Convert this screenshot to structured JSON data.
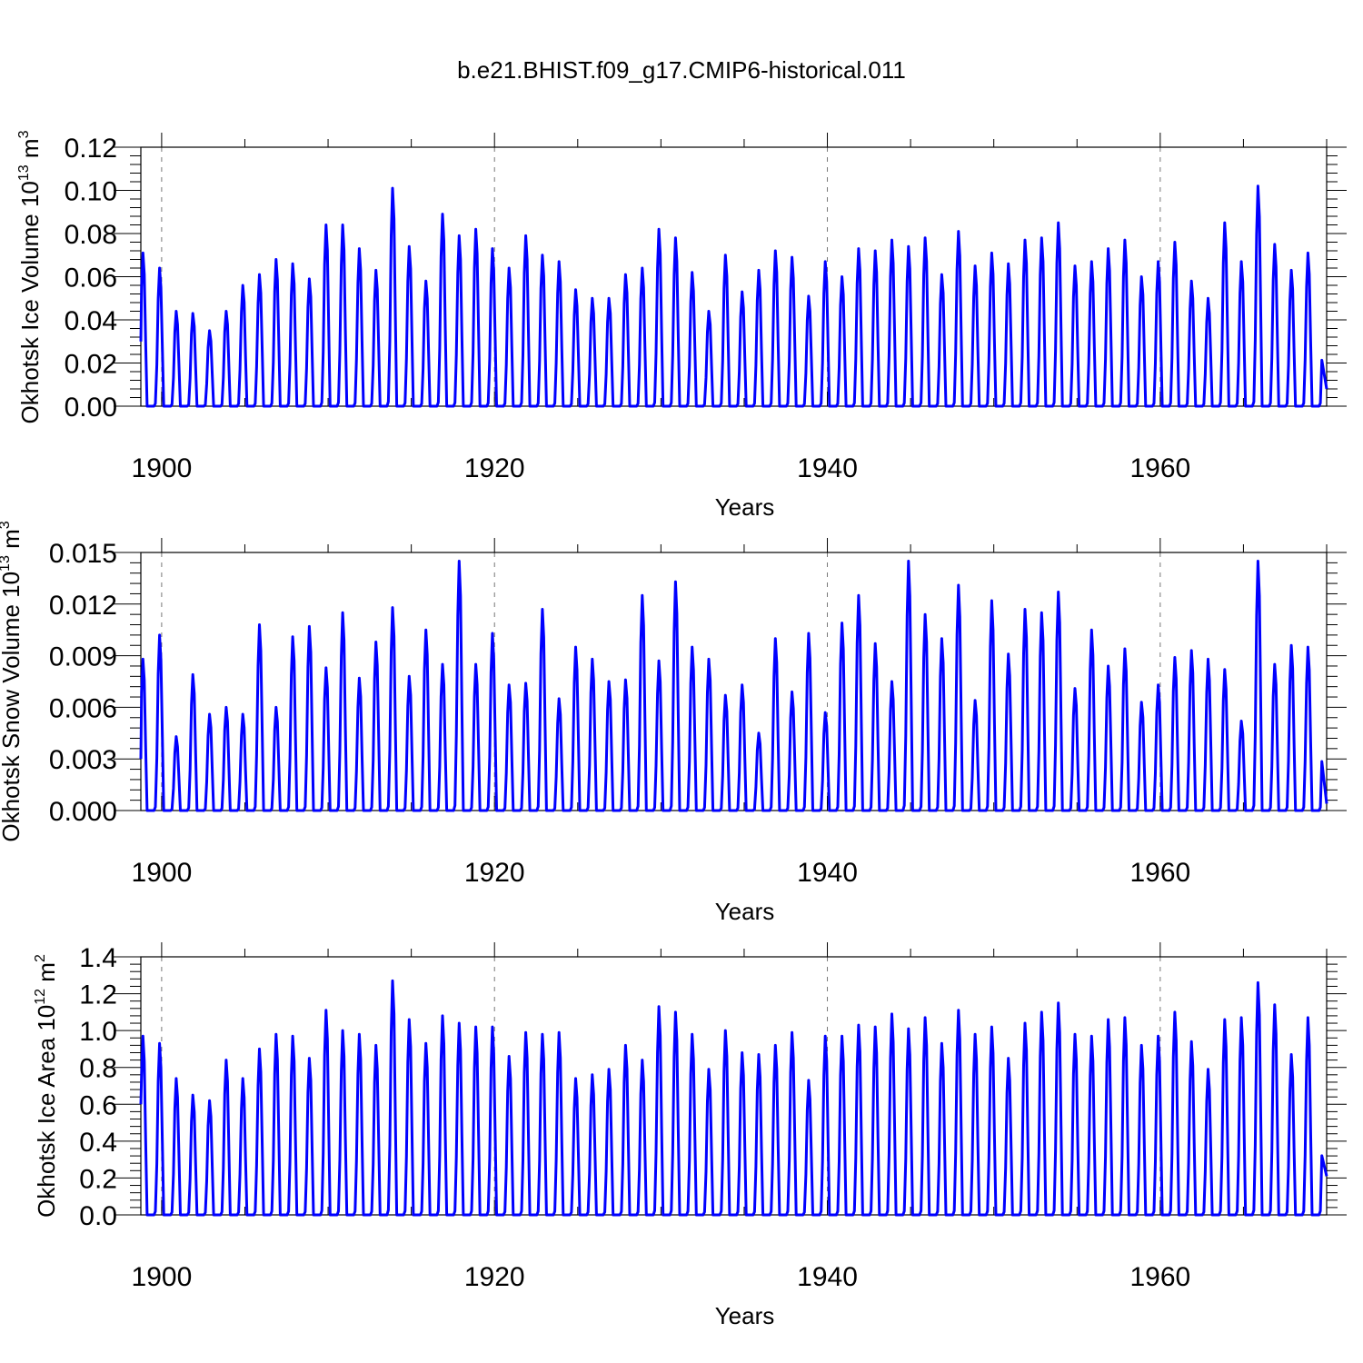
{
  "title": "b.e21.BHIST.f09_g17.CMIP6-historical.011",
  "colors": {
    "series": "#0000ff",
    "axis": "#000000",
    "grid": "#777777"
  },
  "chart_data": [
    {
      "type": "line",
      "name": "ice-volume",
      "ylabel_main": "Okhotsk Ice Volume 10",
      "ylabel_exp": "13",
      "ylabel_unit": "m",
      "ylabel_unit_exp": "3",
      "xlabel": "Years",
      "xlim": [
        1898.75,
        1970.0
      ],
      "ylim": [
        0.0,
        0.12
      ],
      "x_ticks": [
        1900,
        1920,
        1940,
        1960
      ],
      "x_tick_labels": [
        "1900",
        "1920",
        "1940",
        "1960"
      ],
      "y_ticks": [
        0.0,
        0.02,
        0.04,
        0.06,
        0.08,
        0.1,
        0.12
      ],
      "y_tick_labels": [
        "0.00",
        "0.02",
        "0.04",
        "0.06",
        "0.08",
        "0.10",
        "0.12"
      ],
      "grid_x": [
        1900,
        1920,
        1940,
        1960
      ],
      "series_name": "Okhotsk Ice Volume",
      "start_value": 0.03,
      "end_value": 0.008,
      "annual_peaks": [
        0.071,
        0.064,
        0.044,
        0.043,
        0.035,
        0.044,
        0.056,
        0.061,
        0.068,
        0.066,
        0.059,
        0.084,
        0.084,
        0.073,
        0.063,
        0.101,
        0.074,
        0.058,
        0.089,
        0.079,
        0.082,
        0.073,
        0.064,
        0.079,
        0.07,
        0.067,
        0.054,
        0.05,
        0.05,
        0.061,
        0.064,
        0.082,
        0.078,
        0.062,
        0.044,
        0.07,
        0.053,
        0.063,
        0.072,
        0.069,
        0.051,
        0.067,
        0.06,
        0.073,
        0.072,
        0.077,
        0.074,
        0.078,
        0.061,
        0.081,
        0.065,
        0.071,
        0.066,
        0.077,
        0.078,
        0.085,
        0.065,
        0.067,
        0.073,
        0.077,
        0.06,
        0.067,
        0.076,
        0.058,
        0.05,
        0.085,
        0.067,
        0.102,
        0.075,
        0.063,
        0.071
      ]
    },
    {
      "type": "line",
      "name": "snow-volume",
      "ylabel_main": "Okhotsk Snow Volume 10",
      "ylabel_exp": "13",
      "ylabel_unit": "m",
      "ylabel_unit_exp": "3",
      "xlabel": "Years",
      "xlim": [
        1898.75,
        1970.0
      ],
      "ylim": [
        0.0,
        0.015
      ],
      "x_ticks": [
        1900,
        1920,
        1940,
        1960
      ],
      "x_tick_labels": [
        "1900",
        "1920",
        "1940",
        "1960"
      ],
      "y_ticks": [
        0.0,
        0.003,
        0.006,
        0.009,
        0.012,
        0.015
      ],
      "y_tick_labels": [
        "0.000",
        "0.003",
        "0.006",
        "0.009",
        "0.012",
        "0.015"
      ],
      "grid_x": [
        1900,
        1920,
        1940,
        1960
      ],
      "series_name": "Okhotsk Snow Volume",
      "start_value": 0.003,
      "end_value": 0.0004,
      "annual_peaks": [
        0.0088,
        0.0102,
        0.0043,
        0.0079,
        0.0056,
        0.006,
        0.0056,
        0.0108,
        0.006,
        0.0101,
        0.0107,
        0.0083,
        0.0115,
        0.0077,
        0.0098,
        0.0118,
        0.0078,
        0.0105,
        0.0085,
        0.0145,
        0.0085,
        0.0103,
        0.0073,
        0.0074,
        0.0117,
        0.0065,
        0.0095,
        0.0088,
        0.0075,
        0.0076,
        0.0125,
        0.0087,
        0.0133,
        0.0095,
        0.0088,
        0.0067,
        0.0073,
        0.0045,
        0.01,
        0.0069,
        0.0103,
        0.0057,
        0.0109,
        0.0125,
        0.0097,
        0.0075,
        0.0145,
        0.0114,
        0.01,
        0.0131,
        0.0064,
        0.0122,
        0.0091,
        0.0117,
        0.0115,
        0.0127,
        0.0071,
        0.0105,
        0.0084,
        0.0094,
        0.0063,
        0.0073,
        0.0089,
        0.0093,
        0.0088,
        0.0082,
        0.0052,
        0.0145,
        0.0085,
        0.0096,
        0.0095
      ]
    },
    {
      "type": "line",
      "name": "ice-area",
      "ylabel_main": "Okhotsk Ice Area 10",
      "ylabel_exp": "12",
      "ylabel_unit": "m",
      "ylabel_unit_exp": "2",
      "xlabel": "Years",
      "xlim": [
        1898.75,
        1970.0
      ],
      "ylim": [
        0.0,
        1.4
      ],
      "x_ticks": [
        1900,
        1920,
        1940,
        1960
      ],
      "x_tick_labels": [
        "1900",
        "1920",
        "1940",
        "1960"
      ],
      "y_ticks": [
        0.0,
        0.2,
        0.4,
        0.6,
        0.8,
        1.0,
        1.2,
        1.4
      ],
      "y_tick_labels": [
        "0.0",
        "0.2",
        "0.4",
        "0.6",
        "0.8",
        "1.0",
        "1.2",
        "1.4"
      ],
      "grid_x": [
        1900,
        1920,
        1940,
        1960
      ],
      "series_name": "Okhotsk Ice Area",
      "start_value": 0.6,
      "end_value": 0.21,
      "annual_peaks": [
        0.97,
        0.93,
        0.74,
        0.65,
        0.62,
        0.84,
        0.74,
        0.9,
        0.98,
        0.97,
        0.85,
        1.11,
        1.0,
        0.98,
        0.92,
        1.27,
        1.06,
        0.93,
        1.08,
        1.04,
        1.02,
        1.02,
        0.86,
        0.99,
        0.98,
        0.99,
        0.74,
        0.76,
        0.79,
        0.92,
        0.84,
        1.13,
        1.1,
        0.98,
        0.79,
        1.0,
        0.88,
        0.87,
        0.92,
        0.99,
        0.73,
        0.97,
        0.97,
        1.03,
        1.02,
        1.09,
        1.01,
        1.07,
        0.93,
        1.11,
        0.98,
        1.02,
        0.85,
        1.04,
        1.1,
        1.15,
        0.98,
        0.97,
        1.06,
        1.07,
        0.92,
        0.97,
        1.1,
        0.94,
        0.79,
        1.06,
        1.07,
        1.26,
        1.14,
        0.87,
        1.07
      ]
    }
  ]
}
